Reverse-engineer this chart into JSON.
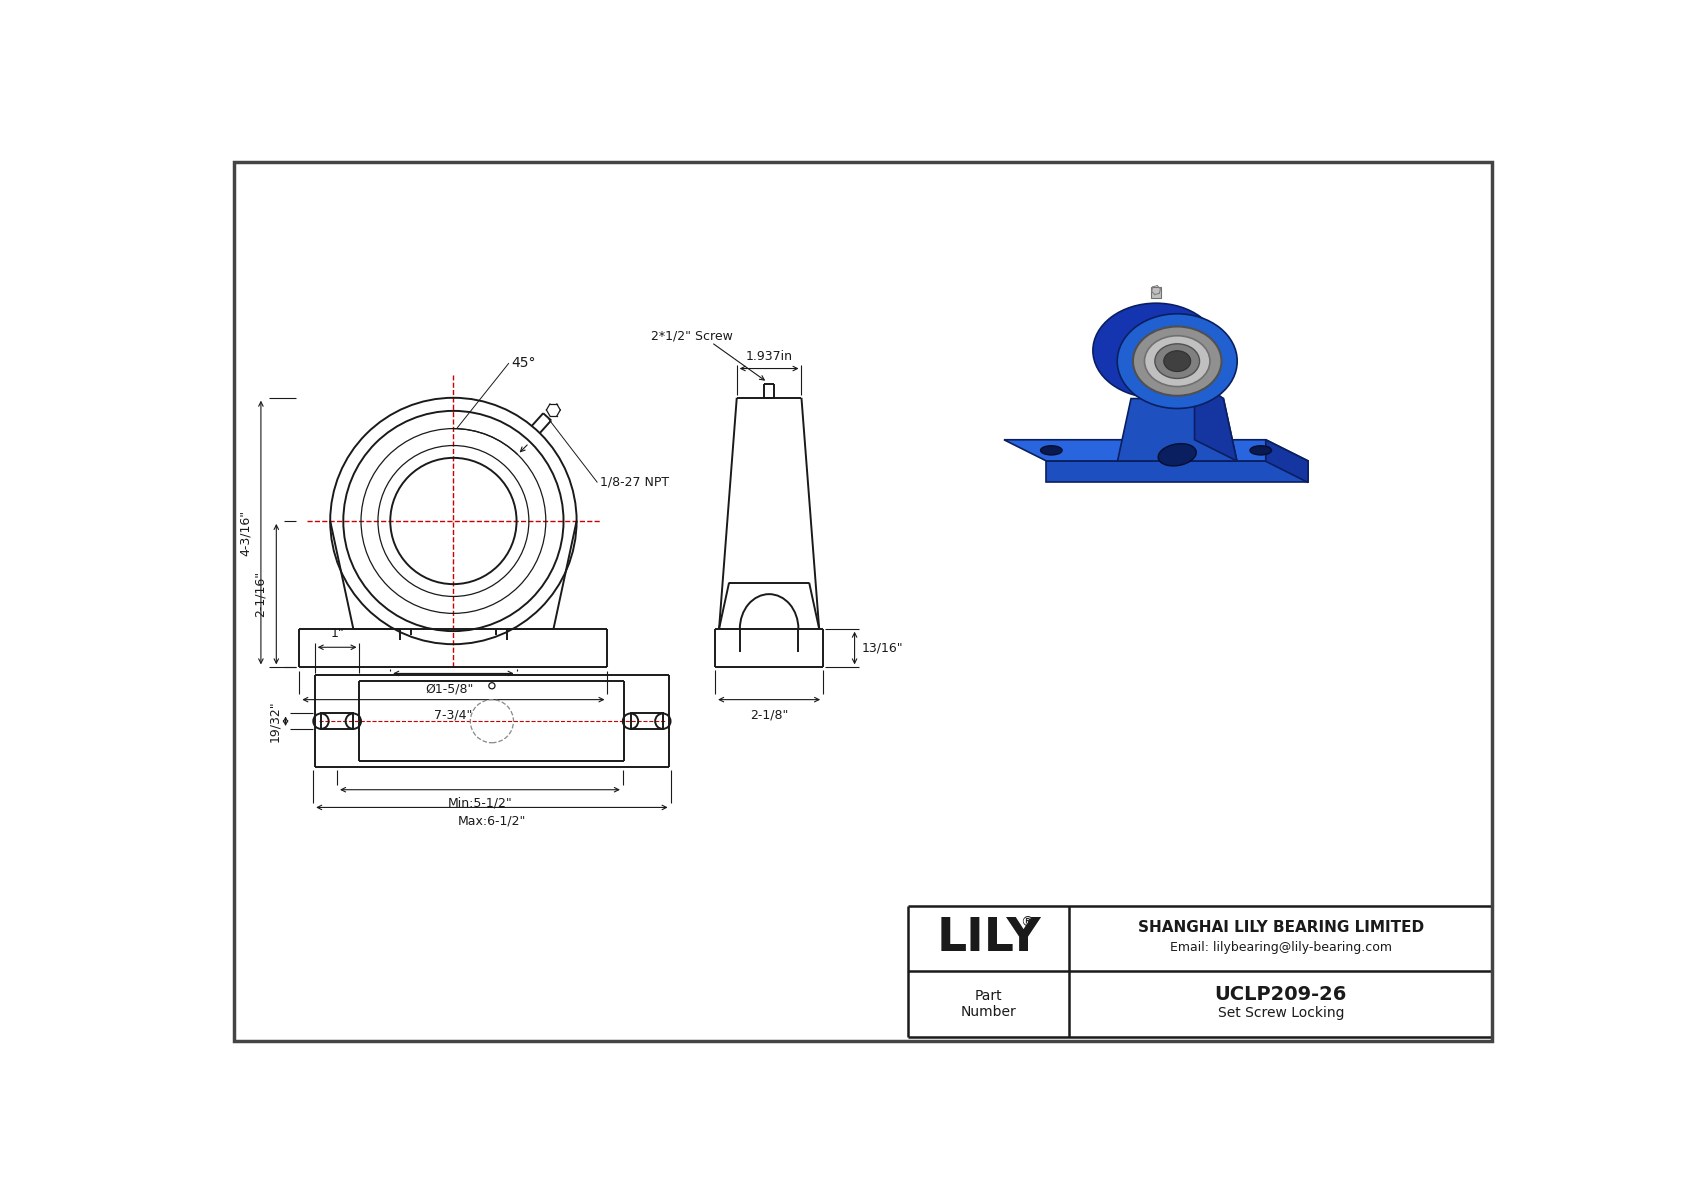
{
  "bg_color": "#ffffff",
  "line_color": "#1a1a1a",
  "red_color": "#cc0000",
  "dim_color": "#1a1a1a",
  "blue_dark": "#1a3a8a",
  "blue_mid": "#1e50b0",
  "blue_light": "#2a6ad4",
  "blue_base": "#1530a0",
  "silver": "#b0b0b0",
  "silver_light": "#d0d0d0",
  "silver_dark": "#888888",
  "title": "UCLP209-26",
  "subtitle": "Set Screw Locking",
  "company": "SHANGHAI LILY BEARING LIMITED",
  "email": "Email: lilybearing@lily-bearing.com",
  "logo": "LILY",
  "logo_reg": "®",
  "part_label": "Part\nNumber",
  "dims": {
    "angle": "45°",
    "npt": "1/8-27 NPT",
    "screw": "2*1/2\" Screw",
    "top_width": "1.937in",
    "bore": "Ø1-5/8\"",
    "total_width": "7-3/4\"",
    "height_total": "4-3/16\"",
    "height_base": "2-1/16\"",
    "side_height": "13/16\"",
    "side_width": "2-1/8\"",
    "bolt_spacing_min": "Min:5-1/2\"",
    "bolt_spacing_max": "Max:6-1/2\"",
    "bolt_hole": "1\"",
    "slot_height": "19/32\""
  }
}
